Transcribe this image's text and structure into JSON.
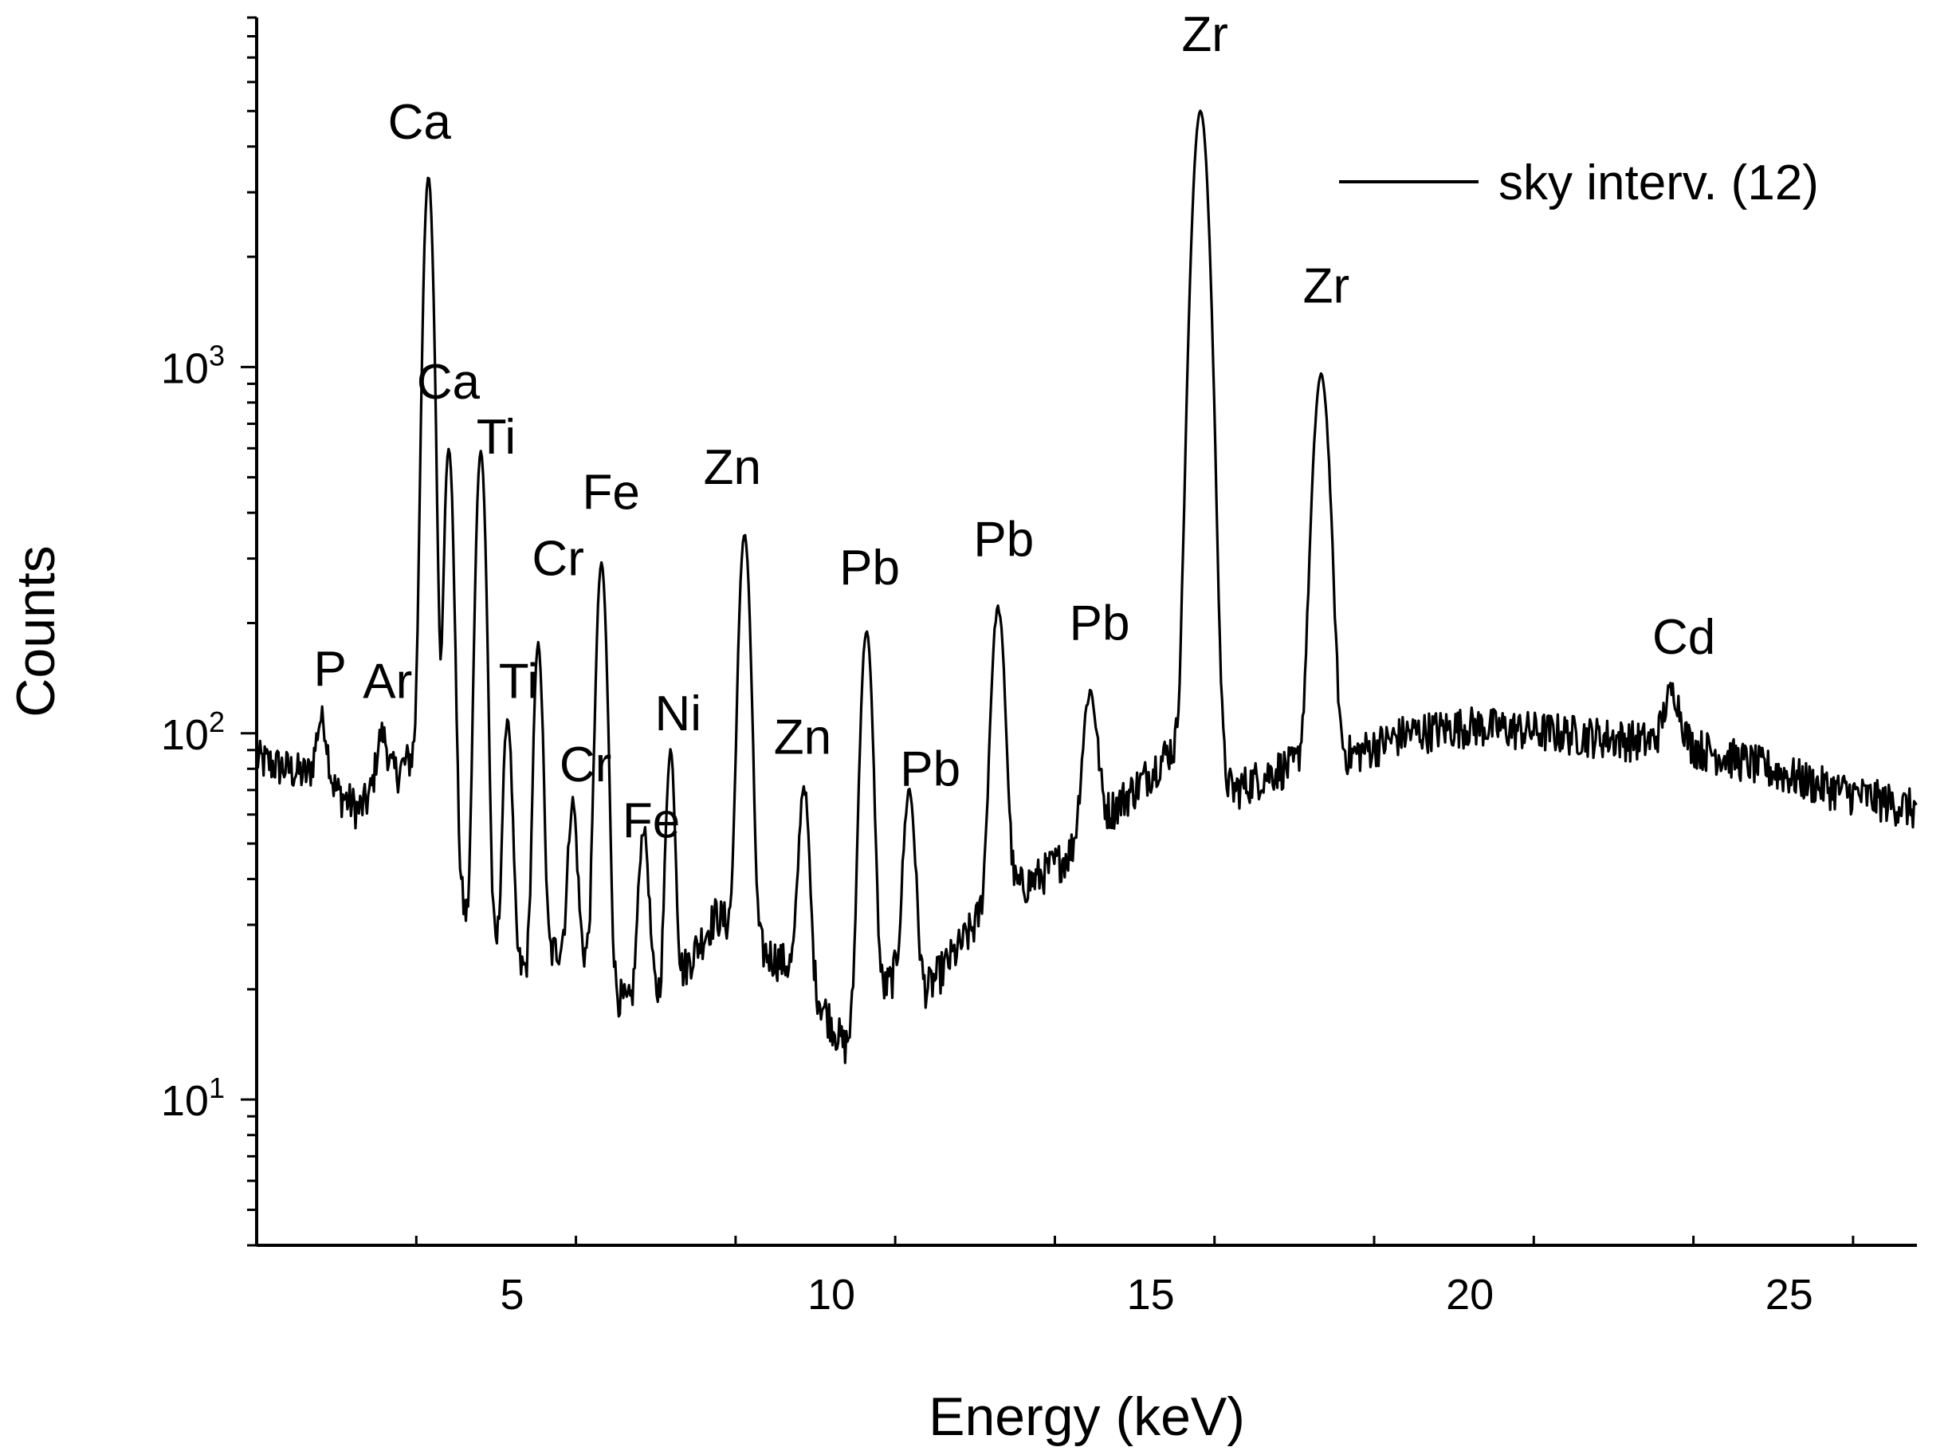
{
  "chart_data": {
    "type": "line",
    "title": "",
    "xlabel": "Energy (keV)",
    "ylabel": "Counts",
    "y_scale": "log",
    "xlim": [
      1,
      27
    ],
    "ylim": [
      4,
      9000
    ],
    "x_ticks": [
      {
        "value": 5,
        "label": "5"
      },
      {
        "value": 10,
        "label": "10"
      },
      {
        "value": 15,
        "label": "15"
      },
      {
        "value": 20,
        "label": "20"
      },
      {
        "value": 25,
        "label": "25"
      }
    ],
    "y_ticks": [
      {
        "value": 10,
        "base": "10",
        "exp": "1"
      },
      {
        "value": 100,
        "base": "10",
        "exp": "2"
      },
      {
        "value": 1000,
        "base": "10",
        "exp": "3"
      }
    ],
    "legend": {
      "position": "top-right",
      "entries": [
        "sky interv. (12)"
      ]
    },
    "line_color": "#000000",
    "series": [
      {
        "name": "sky interv. (12)",
        "baseline_points": [
          [
            1.0,
            85
          ],
          [
            2.0,
            75
          ],
          [
            2.6,
            62
          ],
          [
            3.4,
            85
          ],
          [
            3.7,
            100
          ],
          [
            4.3,
            30
          ],
          [
            4.8,
            25
          ],
          [
            5.3,
            22
          ],
          [
            5.9,
            28
          ],
          [
            6.8,
            18
          ],
          [
            7.5,
            20
          ],
          [
            8.2,
            32
          ],
          [
            9.0,
            25
          ],
          [
            9.6,
            22
          ],
          [
            10.2,
            14
          ],
          [
            11.0,
            22
          ],
          [
            11.5,
            20
          ],
          [
            12.0,
            26
          ],
          [
            12.5,
            35
          ],
          [
            13.2,
            40
          ],
          [
            13.8,
            48
          ],
          [
            14.3,
            60
          ],
          [
            14.8,
            72
          ],
          [
            15.3,
            90
          ],
          [
            16.3,
            70
          ],
          [
            17.0,
            80
          ],
          [
            18.2,
            88
          ],
          [
            19.0,
            100
          ],
          [
            20.0,
            105
          ],
          [
            21.5,
            100
          ],
          [
            22.8,
            95
          ],
          [
            23.5,
            92
          ],
          [
            24.5,
            82
          ],
          [
            25.5,
            72
          ],
          [
            27.0,
            62
          ]
        ],
        "peaks": [
          {
            "label": "P",
            "energy": 2.02,
            "counts": 110,
            "width": 0.08
          },
          {
            "label": "Ar",
            "energy": 2.96,
            "counts": 100,
            "width": 0.08
          },
          {
            "label": "Ca",
            "energy": 3.69,
            "counts": 3300,
            "width": 0.065
          },
          {
            "label": "Ca",
            "energy": 4.01,
            "counts": 600,
            "width": 0.06
          },
          {
            "label": "Ti",
            "energy": 4.51,
            "counts": 590,
            "width": 0.065
          },
          {
            "label": "Ti",
            "energy": 4.93,
            "counts": 110,
            "width": 0.06
          },
          {
            "label": "Cr",
            "energy": 5.41,
            "counts": 175,
            "width": 0.06
          },
          {
            "label": "Cr",
            "energy": 5.95,
            "counts": 65,
            "width": 0.06
          },
          {
            "label": "Fe",
            "energy": 6.4,
            "counts": 290,
            "width": 0.07
          },
          {
            "label": "Fe",
            "energy": 7.06,
            "counts": 55,
            "width": 0.07
          },
          {
            "label": "Ni",
            "energy": 7.48,
            "counts": 90,
            "width": 0.06
          },
          {
            "label": "Zn",
            "energy": 8.64,
            "counts": 350,
            "width": 0.075
          },
          {
            "label": "Zn",
            "energy": 9.57,
            "counts": 72,
            "width": 0.07
          },
          {
            "label": "Pb",
            "energy": 10.55,
            "counts": 190,
            "width": 0.08
          },
          {
            "label": "Pb",
            "energy": 11.22,
            "counts": 70,
            "width": 0.08
          },
          {
            "label": "Pb",
            "energy": 12.61,
            "counts": 220,
            "width": 0.09
          },
          {
            "label": "Pb",
            "energy": 14.05,
            "counts": 130,
            "width": 0.1
          },
          {
            "label": "Zr",
            "energy": 15.78,
            "counts": 5000,
            "width": 0.11
          },
          {
            "label": "Zr",
            "energy": 17.67,
            "counts": 950,
            "width": 0.11
          },
          {
            "label": "Cd",
            "energy": 23.17,
            "counts": 130,
            "width": 0.12
          }
        ]
      }
    ],
    "annotations": [
      {
        "text": "Zr",
        "energy": 15.85,
        "counts": 7300
      },
      {
        "text": "Ca",
        "energy": 3.55,
        "counts": 4200
      },
      {
        "text": "Zr",
        "energy": 17.75,
        "counts": 1500
      },
      {
        "text": "Ca",
        "energy": 4.0,
        "counts": 820
      },
      {
        "text": "Ti",
        "energy": 4.75,
        "counts": 580
      },
      {
        "text": "Fe",
        "energy": 6.55,
        "counts": 410
      },
      {
        "text": "Zn",
        "energy": 8.45,
        "counts": 480
      },
      {
        "text": "Cr",
        "energy": 5.72,
        "counts": 270
      },
      {
        "text": "Pb",
        "energy": 10.6,
        "counts": 255
      },
      {
        "text": "Pb",
        "energy": 12.7,
        "counts": 305
      },
      {
        "text": "Pb",
        "energy": 14.2,
        "counts": 180
      },
      {
        "text": "Cd",
        "energy": 23.35,
        "counts": 165
      },
      {
        "text": "P",
        "energy": 2.15,
        "counts": 135
      },
      {
        "text": "Ar",
        "energy": 3.05,
        "counts": 125
      },
      {
        "text": "Ti",
        "energy": 5.1,
        "counts": 125
      },
      {
        "text": "Ni",
        "energy": 7.6,
        "counts": 102
      },
      {
        "text": "Zn",
        "energy": 9.55,
        "counts": 88
      },
      {
        "text": "Cr",
        "energy": 6.15,
        "counts": 74
      },
      {
        "text": "Pb",
        "energy": 11.55,
        "counts": 72
      },
      {
        "text": "Fe",
        "energy": 7.18,
        "counts": 52
      }
    ]
  }
}
